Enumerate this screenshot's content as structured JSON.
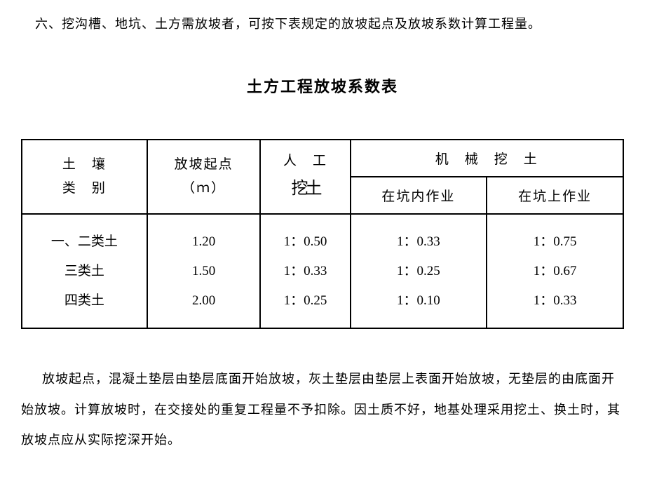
{
  "intro": "六、挖沟槽、地坑、土方需放坡者，可按下表规定的放坡起点及放坡系数计算工程量。",
  "title": "土方工程放坡系数表",
  "table": {
    "headers": {
      "soil_type_line1": "土　壤",
      "soil_type_line2": "类　别",
      "slope_start_line1": "放坡起点",
      "slope_start_line2": "（ｍ）",
      "manual_line1": "人　工",
      "manual_line2": "挖土",
      "machine": "机　械　挖　土",
      "in_pit": "在坑内作业",
      "on_pit": "在坑上作业"
    },
    "rows": {
      "r1": {
        "type": "一、二类土",
        "start": "1.20",
        "manual": "1：0.50",
        "in_pit": "1：0.33",
        "on_pit": "1：0.75"
      },
      "r2": {
        "type": "三类土",
        "start": "1.50",
        "manual": "1：0.33",
        "in_pit": "1：0.25",
        "on_pit": "1：0.67"
      },
      "r3": {
        "type": "四类土",
        "start": "2.00",
        "manual": "1：0.25",
        "in_pit": "1：0.10",
        "on_pit": "1：0.33"
      }
    }
  },
  "footer": "放坡起点，混凝土垫层由垫层底面开始放坡，灰土垫层由垫层上表面开始放坡，无垫层的由底面开始放坡。计算放坡时，在交接处的重复工程量不予扣除。因土质不好，地基处理采用挖土、换土时，其放坡点应从实际挖深开始。"
}
